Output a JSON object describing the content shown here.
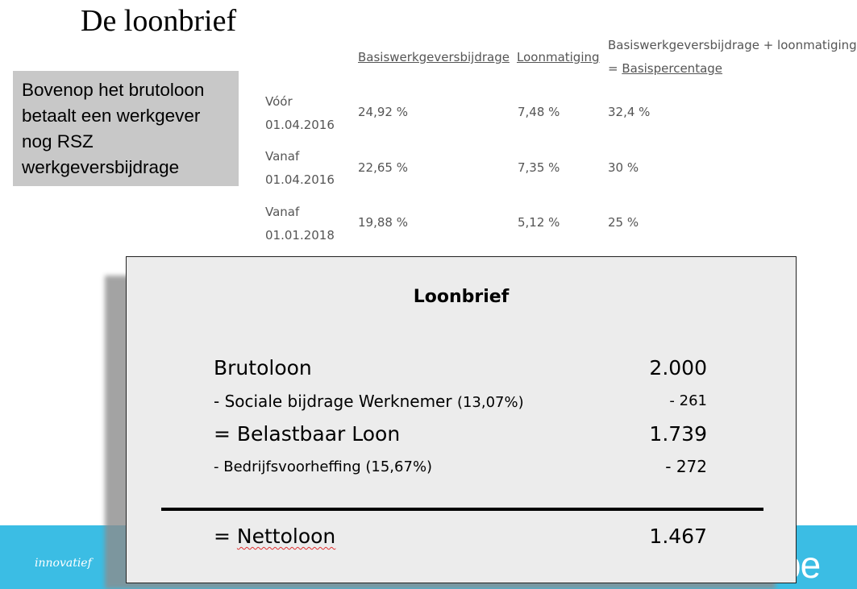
{
  "slide": {
    "title": "De loonbrief",
    "note": "Bovenop het brutoloon betaalt een werkgever nog RSZ werkgeversbijdrage"
  },
  "rsz_table": {
    "headers": {
      "col1": "Basiswerkgeversbijdrage",
      "col2": "Loonmatiging",
      "col3_line1": "Basiswerkgeversbijdrage + loonmatiging",
      "col3_prefix": "= ",
      "col3_link": "Basispercentage"
    },
    "rows": [
      {
        "period_line1": "Vóór",
        "period_line2": "01.04.2016",
        "base": "24,92 %",
        "moderation": "7,48 %",
        "total": "32,4 %"
      },
      {
        "period_line1": "Vanaf",
        "period_line2": "01.04.2016",
        "base": "22,65 %",
        "moderation": "7,35 %",
        "total": "30 %"
      },
      {
        "period_line1": "Vanaf",
        "period_line2": "01.01.2018",
        "base": "19,88 %",
        "moderation": "5,12 %",
        "total": "25 %"
      }
    ]
  },
  "payslip": {
    "title": "Loonbrief",
    "gross_label": "Brutoloon",
    "gross_value": "2.000",
    "social_label": "- Sociale bijdrage Werknemer",
    "social_rate": "(13,07%)",
    "social_value": "- 261",
    "taxable_label": "= Belastbaar Loon",
    "taxable_value": "1.739",
    "withholding_label": "- Bedrijfsvoorheffing (15,67%)",
    "withholding_value": "- 272",
    "net_prefix": "= ",
    "net_label": "Nettoloon",
    "net_value": "1.467"
  },
  "footer": {
    "tagline": "innovatief",
    "logo_fragment": "be",
    "band_color": "#3bbde4"
  }
}
